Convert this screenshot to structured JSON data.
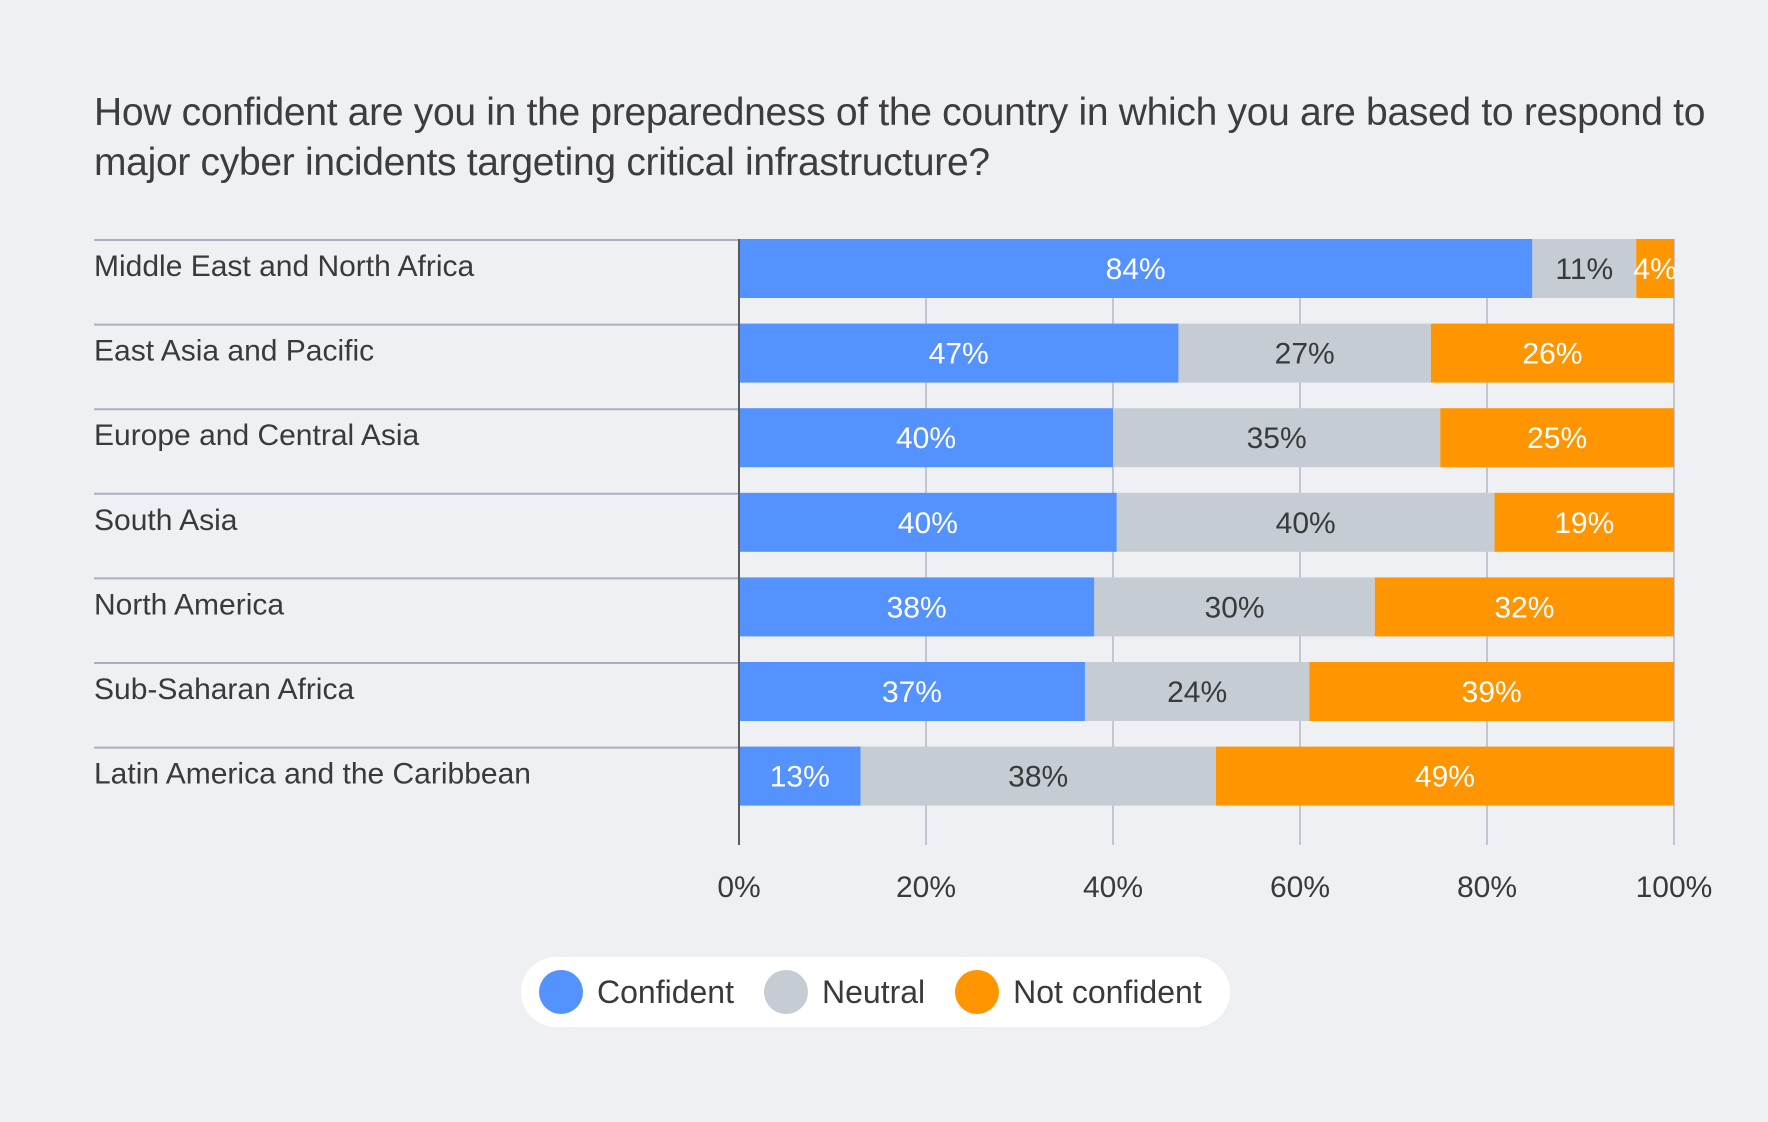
{
  "chart_data": {
    "type": "bar",
    "orientation": "horizontal",
    "stacked": true,
    "title": "How confident are you in the preparedness of the country in which you are based to respond to major cyber incidents targeting critical infrastructure?",
    "categories": [
      "Middle East and North Africa",
      "East Asia and Pacific",
      "Europe and Central Asia",
      "South Asia",
      "North America",
      "Sub-Saharan Africa",
      "Latin America and the Caribbean"
    ],
    "series": [
      {
        "name": "Confident",
        "color": "#5392ff",
        "label_color": "#ffffff",
        "values": [
          84,
          47,
          40,
          40,
          38,
          37,
          13
        ]
      },
      {
        "name": "Neutral",
        "color": "#c5ccd4",
        "label_color": "#3a3a3a",
        "values": [
          11,
          27,
          35,
          40,
          30,
          24,
          38
        ]
      },
      {
        "name": "Not confident",
        "color": "#ff9500",
        "label_color": "#ffffff",
        "values": [
          4,
          26,
          25,
          19,
          32,
          39,
          49
        ]
      }
    ],
    "value_suffix": "%",
    "xlim": [
      0,
      100
    ],
    "xticks": [
      0,
      20,
      40,
      60,
      80,
      100
    ],
    "xtick_labels": [
      "0%",
      "20%",
      "40%",
      "60%",
      "80%",
      "100%"
    ],
    "xlabel": "",
    "ylabel": "",
    "grid": true,
    "legend_position": "bottom-center"
  }
}
